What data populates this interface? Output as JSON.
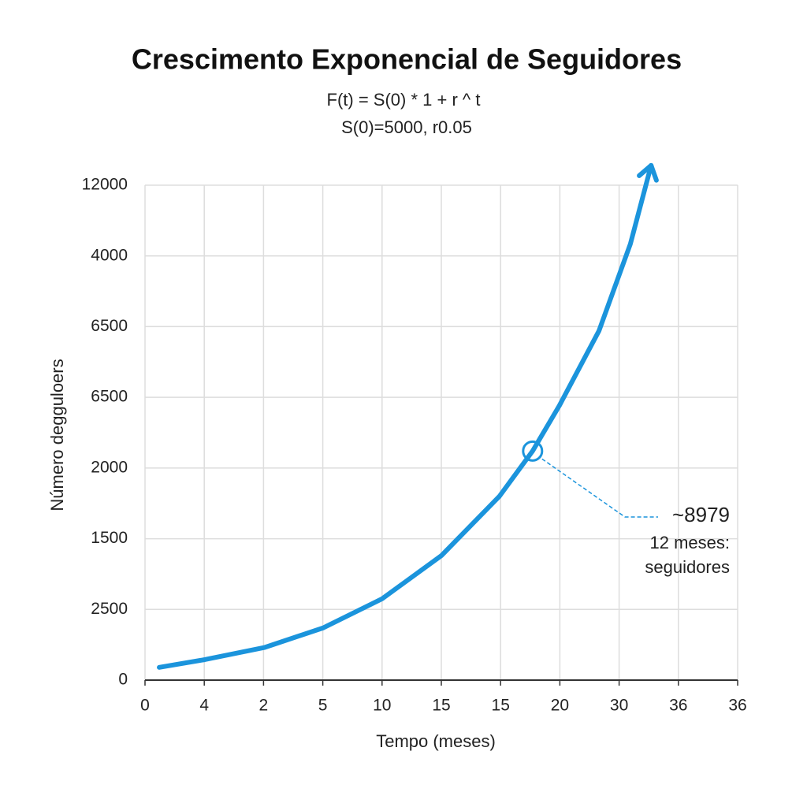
{
  "chart_data": {
    "type": "line",
    "title": "Crescimento Exponencial de Seguidores",
    "subtitle": [
      "F(t) = S(0) * 1 + r ^ t",
      "S(0)=5000, r0.05"
    ],
    "x_label": "Tempo (meses)",
    "y_label": "Número degguloers",
    "xlim": [
      0,
      10
    ],
    "xticks": [
      {
        "value": 0,
        "label": "0"
      },
      {
        "value": 1,
        "label": "4"
      },
      {
        "value": 2,
        "label": "2"
      },
      {
        "value": 3,
        "label": "5"
      },
      {
        "value": 4,
        "label": "10"
      },
      {
        "value": 5,
        "label": "15"
      },
      {
        "value": 6,
        "label": "15"
      },
      {
        "value": 7,
        "label": "20"
      },
      {
        "value": 8,
        "label": "30"
      },
      {
        "value": 9,
        "label": "36"
      },
      {
        "value": 10,
        "label": "36"
      }
    ],
    "ylim": [
      0,
      7
    ],
    "yticks": [
      {
        "value": 0,
        "label": "0"
      },
      {
        "value": 1,
        "label": "2500"
      },
      {
        "value": 2,
        "label": "1500"
      },
      {
        "value": 3,
        "label": "2000"
      },
      {
        "value": 4,
        "label": "6500"
      },
      {
        "value": 5,
        "label": "6500"
      },
      {
        "value": 6,
        "label": "4000"
      },
      {
        "value": 7,
        "label": "12000"
      }
    ],
    "grid": true,
    "color": "#1b94dc",
    "x": [
      0.24,
      1.01,
      2.01,
      3.01,
      4.0,
      5.0,
      5.98,
      6.54,
      6.99,
      7.66,
      8.19,
      8.54
    ],
    "values": [
      0.18,
      0.29,
      0.46,
      0.74,
      1.15,
      1.76,
      2.6,
      3.24,
      3.88,
      4.94,
      6.17,
      7.28
    ],
    "annotation": {
      "x": 6.54,
      "y": 3.24,
      "text": "~8979",
      "lines": [
        "12 meses:",
        "seguidores"
      ]
    }
  }
}
